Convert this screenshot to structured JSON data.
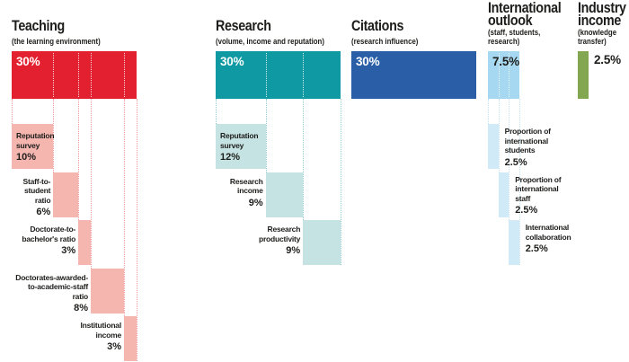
{
  "background": "#ffffff",
  "text_color": "#1d1d1b",
  "chart_data": {
    "type": "bar",
    "subtype": "weighted-breakdown-waterfall",
    "unit": "percent",
    "layout": {
      "orientation": "columns",
      "guides": "dotted-vertical",
      "sub_bars": "staggered-below"
    },
    "columns": [
      {
        "title": "Teaching",
        "subtitle": "(the learning environment)",
        "total_pct": "30%",
        "total_value": 30,
        "color": "#e2202f",
        "sub_color": "#f5b6b0",
        "dot_color": "#f09c9c",
        "total_pct_color": "#ffffff",
        "segments": [
          {
            "label": "Reputation\nsurvey",
            "pct": "10%",
            "value": 10,
            "label_pos": "inside"
          },
          {
            "label": "Staff-to-\nstudent\nratio",
            "pct": "6%",
            "value": 6,
            "label_pos": "left"
          },
          {
            "label": "Doctorate-to-\nbachelor's ratio",
            "pct": "3%",
            "value": 3,
            "label_pos": "left"
          },
          {
            "label": "Doctorates-awarded-\nto-academic-staff\nratio",
            "pct": "8%",
            "value": 8,
            "label_pos": "left"
          },
          {
            "label": "Institutional\nincome",
            "pct": "3%",
            "value": 3,
            "label_pos": "left"
          }
        ]
      },
      {
        "title": "Research",
        "subtitle": "(volume, income and reputation)",
        "total_pct": "30%",
        "total_value": 30,
        "color": "#0f99a2",
        "sub_color": "#c6e3e3",
        "dot_color": "#8fc9cd",
        "total_pct_color": "#ffffff",
        "segments": [
          {
            "label": "Reputation\nsurvey",
            "pct": "12%",
            "value": 12,
            "label_pos": "inside"
          },
          {
            "label": "Research\nincome",
            "pct": "9%",
            "value": 9,
            "label_pos": "left"
          },
          {
            "label": "Research\nproductivity",
            "pct": "9%",
            "value": 9,
            "label_pos": "left"
          }
        ]
      },
      {
        "title": "Citations",
        "subtitle": "(research influence)",
        "total_pct": "30%",
        "total_value": 30,
        "color": "#2a5fa7",
        "sub_color": "#2a5fa7",
        "dot_color": "#2a5fa7",
        "total_pct_color": "#ffffff",
        "segments": []
      },
      {
        "title": "International\noutlook",
        "subtitle": "(staff, students,\nresearch)",
        "total_pct": "7.5%",
        "total_value": 7.5,
        "color": "#a6d9f1",
        "sub_color": "#d0eaf8",
        "dot_color": "#c3e3f4",
        "total_pct_color": "#1d1d1b",
        "segments": [
          {
            "label": "Proportion of\ninternational\nstudents",
            "pct": "2.5%",
            "value": 2.5,
            "label_pos": "right"
          },
          {
            "label": "Proportion of\ninternational\nstaff",
            "pct": "2.5%",
            "value": 2.5,
            "label_pos": "right"
          },
          {
            "label": "International\ncollaboration",
            "pct": "2.5%",
            "value": 2.5,
            "label_pos": "right"
          }
        ]
      },
      {
        "title": "Industry\nincome",
        "subtitle": "(knowledge\ntransfer)",
        "total_pct": "2.5%",
        "total_value": 2.5,
        "color": "#82a750",
        "sub_color": "#82a750",
        "dot_color": "#82a750",
        "total_pct_color": "#1d1d1b",
        "pct_outside": true,
        "segments": []
      }
    ]
  }
}
